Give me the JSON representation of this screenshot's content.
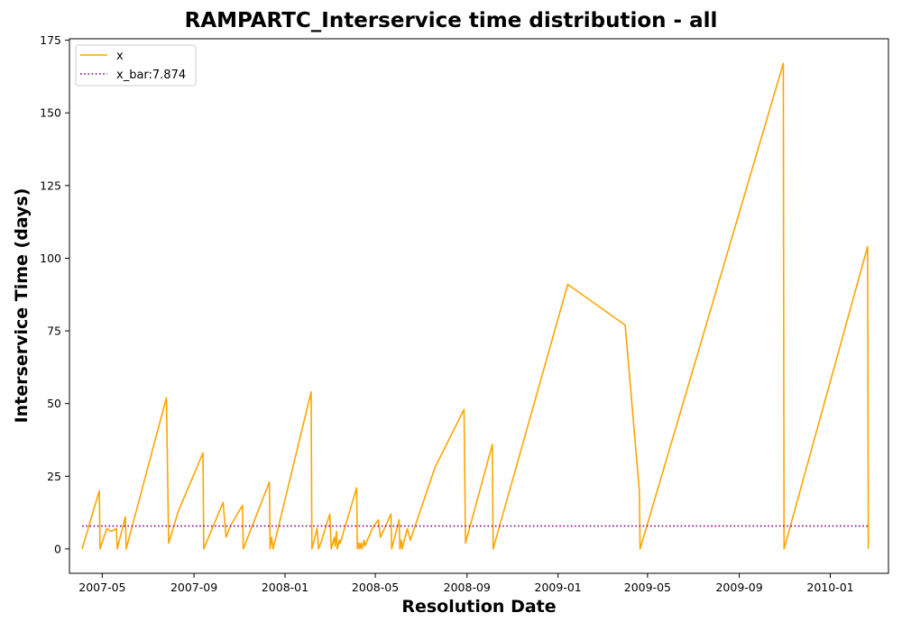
{
  "chart_data": {
    "type": "line",
    "title": "RAMPARTC_Interservice time distribution - all",
    "xlabel": "Resolution Date",
    "ylabel": "Interservice Time (days)",
    "xlim": [
      "2007-03-18",
      "2010-03-20"
    ],
    "ylim": [
      -8.4,
      175.5
    ],
    "x_ticks": [
      "2007-05",
      "2007-09",
      "2008-01",
      "2008-05",
      "2008-09",
      "2009-01",
      "2009-05",
      "2009-09",
      "2010-01"
    ],
    "y_ticks": [
      0,
      25,
      50,
      75,
      100,
      125,
      150,
      175
    ],
    "legend": {
      "placement": "upper-left"
    },
    "series": [
      {
        "name": "x",
        "color": "#ffa500",
        "style": "solid",
        "points": [
          [
            "2007-04-04",
            0
          ],
          [
            "2007-04-27",
            20
          ],
          [
            "2007-04-28",
            0
          ],
          [
            "2007-05-07",
            7
          ],
          [
            "2007-05-13",
            6
          ],
          [
            "2007-05-20",
            7
          ],
          [
            "2007-05-21",
            0
          ],
          [
            "2007-06-01",
            11
          ],
          [
            "2007-06-02",
            0
          ],
          [
            "2007-07-26",
            52
          ],
          [
            "2007-07-29",
            2
          ],
          [
            "2007-08-11",
            13
          ],
          [
            "2007-09-13",
            33
          ],
          [
            "2007-09-14",
            0
          ],
          [
            "2007-10-10",
            16
          ],
          [
            "2007-10-14",
            4
          ],
          [
            "2007-10-20",
            8
          ],
          [
            "2007-11-05",
            15
          ],
          [
            "2007-11-06",
            0
          ],
          [
            "2007-12-11",
            23
          ],
          [
            "2007-12-12",
            0
          ],
          [
            "2007-12-14",
            4
          ],
          [
            "2007-12-16",
            0
          ],
          [
            "2008-02-05",
            54
          ],
          [
            "2008-02-06",
            0
          ],
          [
            "2008-02-13",
            7
          ],
          [
            "2008-02-15",
            0
          ],
          [
            "2008-02-18",
            2
          ],
          [
            "2008-03-01",
            12
          ],
          [
            "2008-03-03",
            0
          ],
          [
            "2008-03-07",
            4
          ],
          [
            "2008-03-08",
            1
          ],
          [
            "2008-03-10",
            6
          ],
          [
            "2008-03-11",
            0
          ],
          [
            "2008-03-14",
            3
          ],
          [
            "2008-03-15",
            2
          ],
          [
            "2008-04-06",
            21
          ],
          [
            "2008-04-07",
            0
          ],
          [
            "2008-04-09",
            2
          ],
          [
            "2008-04-10",
            0
          ],
          [
            "2008-04-12",
            2
          ],
          [
            "2008-04-13",
            0
          ],
          [
            "2008-04-16",
            3
          ],
          [
            "2008-04-17",
            1
          ],
          [
            "2008-04-27",
            7
          ],
          [
            "2008-05-05",
            10
          ],
          [
            "2008-05-08",
            4
          ],
          [
            "2008-05-22",
            12
          ],
          [
            "2008-05-23",
            0
          ],
          [
            "2008-06-02",
            10
          ],
          [
            "2008-06-03",
            0
          ],
          [
            "2008-06-05",
            3
          ],
          [
            "2008-06-06",
            0
          ],
          [
            "2008-06-10",
            4
          ],
          [
            "2008-06-13",
            7
          ],
          [
            "2008-06-17",
            3
          ],
          [
            "2008-07-20",
            28
          ],
          [
            "2008-08-28",
            48
          ],
          [
            "2008-08-30",
            2
          ],
          [
            "2008-10-05",
            36
          ],
          [
            "2008-10-06",
            0
          ],
          [
            "2009-01-14",
            91
          ],
          [
            "2009-04-01",
            77
          ],
          [
            "2009-04-20",
            20
          ],
          [
            "2009-04-21",
            0
          ],
          [
            "2009-10-30",
            167
          ],
          [
            "2009-10-31",
            0
          ],
          [
            "2010-02-20",
            104
          ],
          [
            "2010-02-21",
            0
          ]
        ]
      },
      {
        "name": "x_bar:7.874",
        "color": "#800080",
        "style": "dotted",
        "points": [
          [
            "2007-04-04",
            7.874
          ],
          [
            "2010-02-21",
            7.874
          ]
        ]
      }
    ]
  }
}
